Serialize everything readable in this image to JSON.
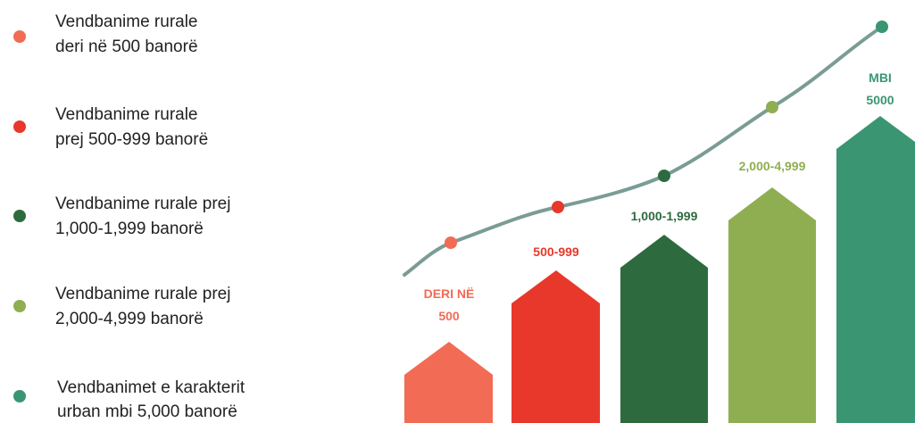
{
  "legend": [
    {
      "lines": [
        "Vendbanime rurale",
        "deri në 500 banorë"
      ]
    },
    {
      "lines": [
        "Vendbanime rurale",
        "prej 500-999 banorë"
      ]
    },
    {
      "lines": [
        "Vendbanime rurale prej",
        "1,000-1,999 banorë"
      ]
    },
    {
      "lines": [
        "Vendbanime rurale prej",
        "2,000-4,999 banorë"
      ]
    },
    {
      "lines": [
        "Vendbanimet e karakterit",
        "urban mbi 5,000 banorë"
      ]
    }
  ],
  "columns": [
    {
      "lines": [
        "DERI NË",
        "500"
      ]
    },
    {
      "lines": [
        "500-999"
      ]
    },
    {
      "lines": [
        "1,000-1,999"
      ]
    },
    {
      "lines": [
        "2,000-4,999"
      ]
    },
    {
      "lines": [
        "MBI",
        "5000"
      ]
    }
  ]
}
